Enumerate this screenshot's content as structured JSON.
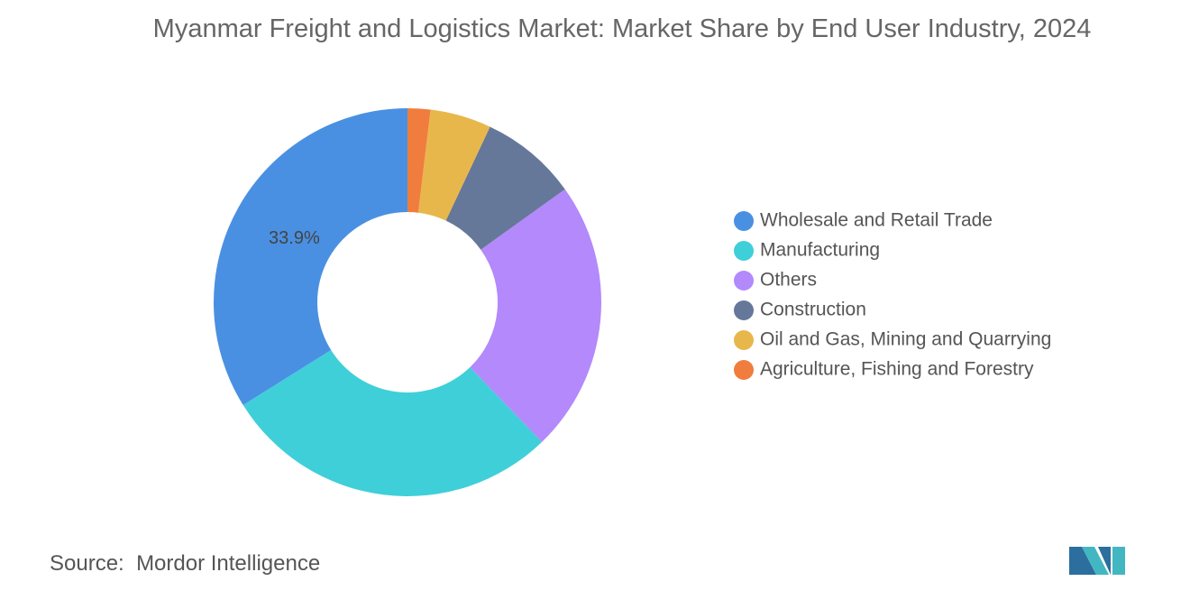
{
  "chart_data": {
    "type": "donut",
    "title": "Myanmar Freight and Logistics Market: Market Share by End User Industry, 2024",
    "categories": [
      "Wholesale and Retail Trade",
      "Manufacturing",
      "Others",
      "Construction",
      "Oil and Gas, Mining and Quarrying",
      "Agriculture, Fishing and Forestry"
    ],
    "values": [
      33.9,
      28.3,
      22.7,
      8.1,
      5.1,
      1.9
    ],
    "value_labels": [
      "33.9%",
      null,
      null,
      null,
      null,
      null
    ],
    "colors": [
      "#4a90e2",
      "#3fcfd9",
      "#b389fb",
      "#657899",
      "#e8b74c",
      "#f07d3d"
    ]
  },
  "source": {
    "label": "Source:",
    "text": "Mordor Intelligence"
  }
}
